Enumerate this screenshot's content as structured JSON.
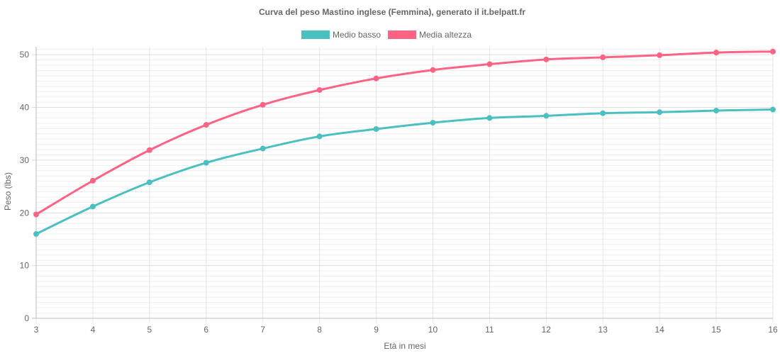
{
  "chart_data": {
    "type": "line",
    "title": "Curva del peso Mastino inglese (Femmina), generato il it.belpatt.fr",
    "xlabel": "Età in mesi",
    "ylabel": "Peso (lbs)",
    "x": [
      3,
      4,
      5,
      6,
      7,
      8,
      9,
      10,
      11,
      12,
      13,
      14,
      15,
      16
    ],
    "xlim": [
      3,
      16
    ],
    "ylim": [
      0,
      51.5
    ],
    "yticks": [
      0,
      10,
      20,
      30,
      40,
      50
    ],
    "grid": true,
    "legend_position": "top-center",
    "series": [
      {
        "name": "Medio basso",
        "color": "#4bc0c0",
        "values": [
          16.0,
          21.2,
          25.8,
          29.5,
          32.2,
          34.5,
          35.9,
          37.1,
          38.0,
          38.4,
          38.9,
          39.1,
          39.4,
          39.6
        ]
      },
      {
        "name": "Media altezza",
        "color": "#ff6384",
        "values": [
          19.7,
          26.1,
          31.9,
          36.7,
          40.5,
          43.3,
          45.5,
          47.1,
          48.2,
          49.1,
          49.5,
          49.9,
          50.4,
          50.6
        ]
      }
    ]
  }
}
